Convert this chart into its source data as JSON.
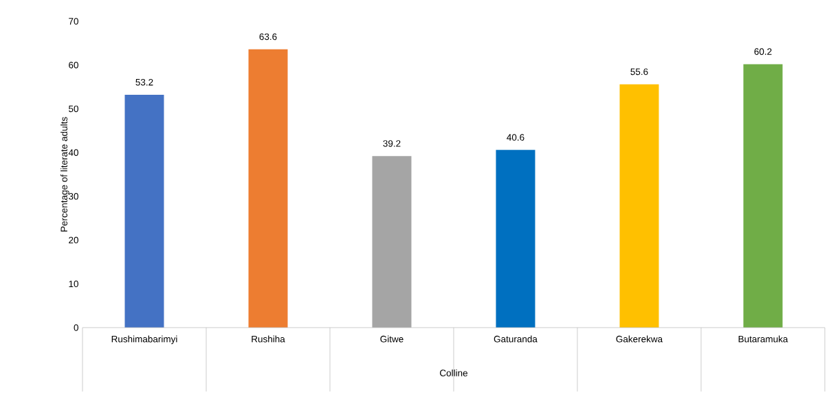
{
  "chart_data": {
    "type": "bar",
    "xlabel": "Colline",
    "ylabel": "Percentage of literate adults",
    "categories": [
      "Rushimabarimyi",
      "Rushiha",
      "Gitwe",
      "Gaturanda",
      "Gakerekwa",
      "Butaramuka"
    ],
    "values": [
      53.2,
      63.6,
      39.2,
      40.6,
      55.6,
      60.2
    ],
    "colors": [
      "#4472c4",
      "#ed7d31",
      "#a5a5a5",
      "#0070c0",
      "#ffc000",
      "#70ad47"
    ],
    "ylim": [
      0,
      70
    ],
    "yticks": [
      0,
      10,
      20,
      30,
      40,
      50,
      60,
      70
    ],
    "data_labels": true
  }
}
